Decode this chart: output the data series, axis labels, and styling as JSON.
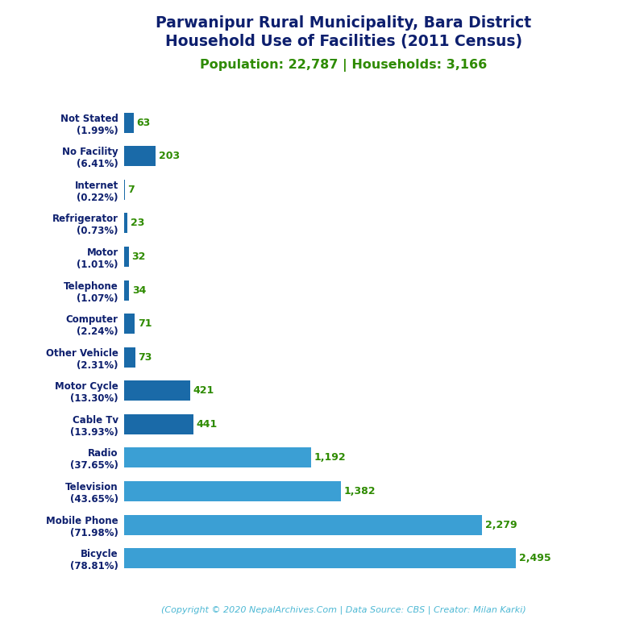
{
  "title_line1": "Parwanipur Rural Municipality, Bara District",
  "title_line2": "Household Use of Facilities (2011 Census)",
  "subtitle": "Population: 22,787 | Households: 3,166",
  "footer": "(Copyright © 2020 NepalArchives.Com | Data Source: CBS | Creator: Milan Karki)",
  "categories": [
    "Not Stated\n(1.99%)",
    "No Facility\n(6.41%)",
    "Internet\n(0.22%)",
    "Refrigerator\n(0.73%)",
    "Motor\n(1.01%)",
    "Telephone\n(1.07%)",
    "Computer\n(2.24%)",
    "Other Vehicle\n(2.31%)",
    "Motor Cycle\n(13.30%)",
    "Cable Tv\n(13.93%)",
    "Radio\n(37.65%)",
    "Television\n(43.65%)",
    "Mobile Phone\n(71.98%)",
    "Bicycle\n(78.81%)"
  ],
  "values": [
    63,
    203,
    7,
    23,
    32,
    34,
    71,
    73,
    421,
    441,
    1192,
    1382,
    2279,
    2495
  ],
  "bar_color_dark": "#1a6aa8",
  "bar_color_light": "#3b9fd4",
  "title_color": "#0d1f6e",
  "subtitle_color": "#2e8b00",
  "value_color": "#2e8b00",
  "footer_color": "#4db8d4",
  "background_color": "#ffffff",
  "label_color": "#0d1f6e",
  "figsize": [
    7.68,
    7.68
  ],
  "dpi": 100
}
